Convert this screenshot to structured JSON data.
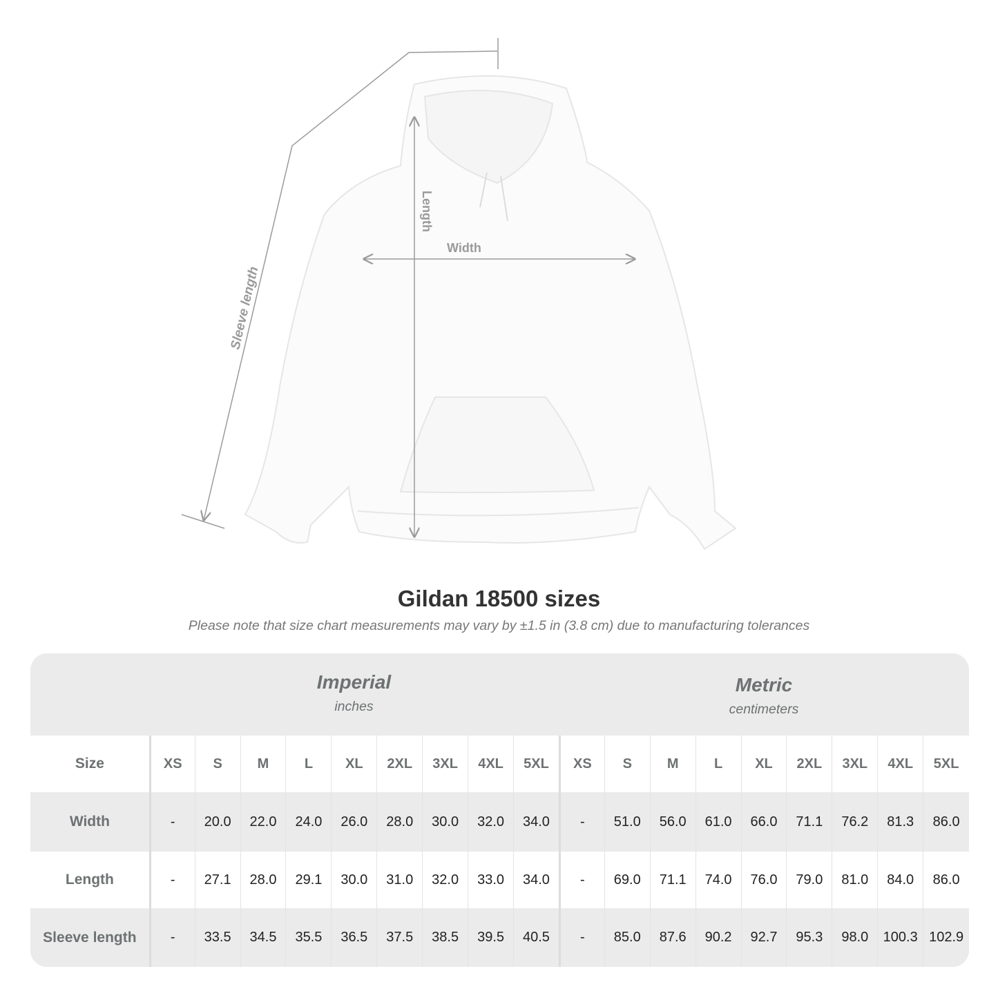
{
  "illustration": {
    "labels": {
      "length": "Length",
      "width": "Width",
      "sleeve": "Sleeve length"
    },
    "line_color": "#9a9a9a"
  },
  "title": "Gildan 18500 sizes",
  "note": "Please note that size chart measurements may vary by ±1.5 in (3.8 cm) due to manufacturing tolerances",
  "table": {
    "imperial": {
      "system": "Imperial",
      "unit": "inches"
    },
    "metric": {
      "system": "Metric",
      "unit": "centimeters"
    },
    "size_label": "Size",
    "sizes": [
      "XS",
      "S",
      "M",
      "L",
      "XL",
      "2XL",
      "3XL",
      "4XL",
      "5XL"
    ],
    "rows": [
      {
        "label": "Width",
        "imperial": [
          "-",
          "20.0",
          "22.0",
          "24.0",
          "26.0",
          "28.0",
          "30.0",
          "32.0",
          "34.0"
        ],
        "metric": [
          "-",
          "51.0",
          "56.0",
          "61.0",
          "66.0",
          "71.1",
          "76.2",
          "81.3",
          "86.0"
        ]
      },
      {
        "label": "Length",
        "imperial": [
          "-",
          "27.1",
          "28.0",
          "29.1",
          "30.0",
          "31.0",
          "32.0",
          "33.0",
          "34.0"
        ],
        "metric": [
          "-",
          "69.0",
          "71.1",
          "74.0",
          "76.0",
          "79.0",
          "81.0",
          "84.0",
          "86.0"
        ]
      },
      {
        "label": "Sleeve length",
        "imperial": [
          "-",
          "33.5",
          "34.5",
          "35.5",
          "36.5",
          "37.5",
          "38.5",
          "39.5",
          "40.5"
        ],
        "metric": [
          "-",
          "85.0",
          "87.6",
          "90.2",
          "92.7",
          "95.3",
          "98.0",
          "100.3",
          "102.9"
        ]
      }
    ],
    "colors": {
      "band": "#ebebeb",
      "label_text": "#6d7172",
      "value_text": "#222222"
    }
  }
}
